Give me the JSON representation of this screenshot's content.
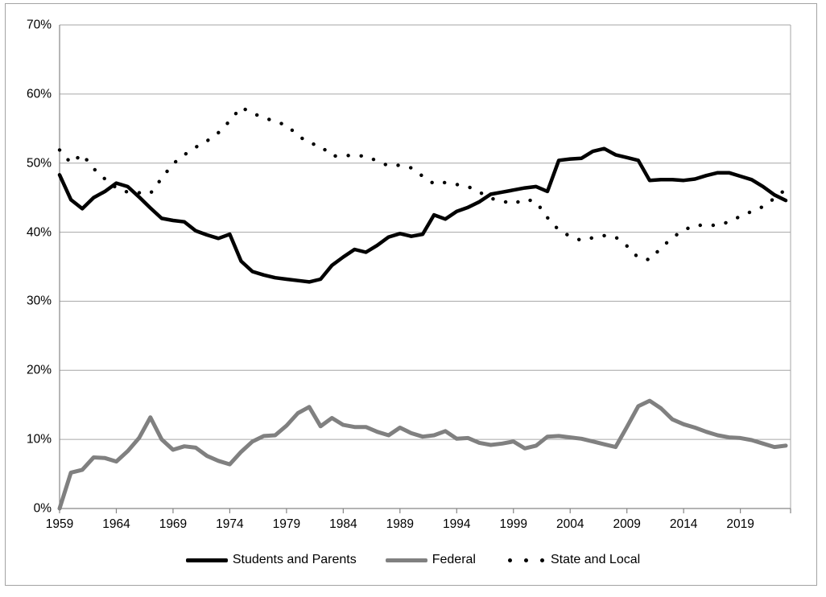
{
  "chart_data": {
    "type": "line",
    "x": [
      1959,
      1960,
      1961,
      1962,
      1963,
      1964,
      1965,
      1966,
      1967,
      1968,
      1969,
      1970,
      1971,
      1972,
      1973,
      1974,
      1975,
      1976,
      1977,
      1978,
      1979,
      1980,
      1981,
      1982,
      1983,
      1984,
      1985,
      1986,
      1987,
      1988,
      1989,
      1990,
      1991,
      1992,
      1993,
      1994,
      1995,
      1996,
      1997,
      1998,
      1999,
      2000,
      2001,
      2002,
      2003,
      2004,
      2005,
      2006,
      2007,
      2008,
      2009,
      2010,
      2011,
      2012,
      2013,
      2014,
      2015,
      2016,
      2017,
      2018,
      2019,
      2020,
      2021,
      2022,
      2023
    ],
    "series": [
      {
        "name": "Students and Parents",
        "style": "solid",
        "color": "#000000",
        "values": [
          48.3,
          44.7,
          43.4,
          45.0,
          45.9,
          47.1,
          46.6,
          45.1,
          43.5,
          42.0,
          41.7,
          41.5,
          40.2,
          39.6,
          39.1,
          39.7,
          35.8,
          34.3,
          33.8,
          33.4,
          33.2,
          33.0,
          32.8,
          33.2,
          35.2,
          36.4,
          37.5,
          37.1,
          38.1,
          39.3,
          39.8,
          39.4,
          39.7,
          42.5,
          41.9,
          43.0,
          43.6,
          44.4,
          45.5,
          45.8,
          46.1,
          46.4,
          46.6,
          45.9,
          50.4,
          50.6,
          50.7,
          51.7,
          52.1,
          51.2,
          50.8,
          50.4,
          47.5,
          47.6,
          47.6,
          47.5,
          47.7,
          48.2,
          48.6,
          48.6,
          48.1,
          47.6,
          46.6,
          45.4,
          44.6
        ]
      },
      {
        "name": "Federal",
        "style": "solid",
        "color": "#808080",
        "values": [
          0.0,
          5.2,
          5.6,
          7.4,
          7.3,
          6.8,
          8.3,
          10.2,
          13.2,
          10.0,
          8.5,
          9.0,
          8.8,
          7.6,
          6.9,
          6.4,
          8.2,
          9.7,
          10.5,
          10.6,
          12.0,
          13.8,
          14.7,
          11.9,
          13.1,
          12.1,
          11.8,
          11.8,
          11.1,
          10.6,
          11.7,
          10.9,
          10.4,
          10.6,
          11.2,
          10.1,
          10.2,
          9.5,
          9.2,
          9.4,
          9.7,
          8.7,
          9.1,
          10.4,
          10.5,
          10.3,
          10.1,
          9.7,
          9.3,
          8.9,
          11.8,
          14.8,
          15.6,
          14.5,
          12.9,
          12.2,
          11.7,
          11.1,
          10.6,
          10.3,
          10.2,
          9.9,
          9.4,
          8.9,
          9.1
        ]
      },
      {
        "name": "State and Local",
        "style": "dotted",
        "color": "#000000",
        "values": [
          51.9,
          50.0,
          51.3,
          49.2,
          47.7,
          46.4,
          45.8,
          45.7,
          45.6,
          47.8,
          49.9,
          51.2,
          52.3,
          53.2,
          54.4,
          56.1,
          58.1,
          57.2,
          56.6,
          56.0,
          55.5,
          54.0,
          52.9,
          52.5,
          51.0,
          51.1,
          51.1,
          51.0,
          50.3,
          49.6,
          49.7,
          49.3,
          48.1,
          47.0,
          47.2,
          46.9,
          46.6,
          45.8,
          44.9,
          44.5,
          44.1,
          44.8,
          44.4,
          42.1,
          40.3,
          39.4,
          38.8,
          39.2,
          39.5,
          39.3,
          38.0,
          36.3,
          36.0,
          37.7,
          39.2,
          40.3,
          41.0,
          41.0,
          41.0,
          41.5,
          42.3,
          43.0,
          43.7,
          44.9,
          46.2
        ]
      }
    ],
    "ylim": [
      0,
      70
    ],
    "y_tick_step": 10,
    "y_tick_labels": [
      "0%",
      "10%",
      "20%",
      "30%",
      "40%",
      "50%",
      "60%",
      "70%"
    ],
    "x_tick_years": [
      1959,
      1964,
      1969,
      1974,
      1979,
      1984,
      1989,
      1994,
      1999,
      2004,
      2009,
      2014,
      2019
    ],
    "x_tick_labels": [
      "1959",
      "1964",
      "1969",
      "1974",
      "1979",
      "1984",
      "1989",
      "1994",
      "1999",
      "2004",
      "2009",
      "2014",
      "2019"
    ],
    "grid": "horizontal",
    "legend_position": "bottom",
    "gridline_color": "#a6a6a6",
    "axis_color": "#868686",
    "text_color": "#000000"
  }
}
